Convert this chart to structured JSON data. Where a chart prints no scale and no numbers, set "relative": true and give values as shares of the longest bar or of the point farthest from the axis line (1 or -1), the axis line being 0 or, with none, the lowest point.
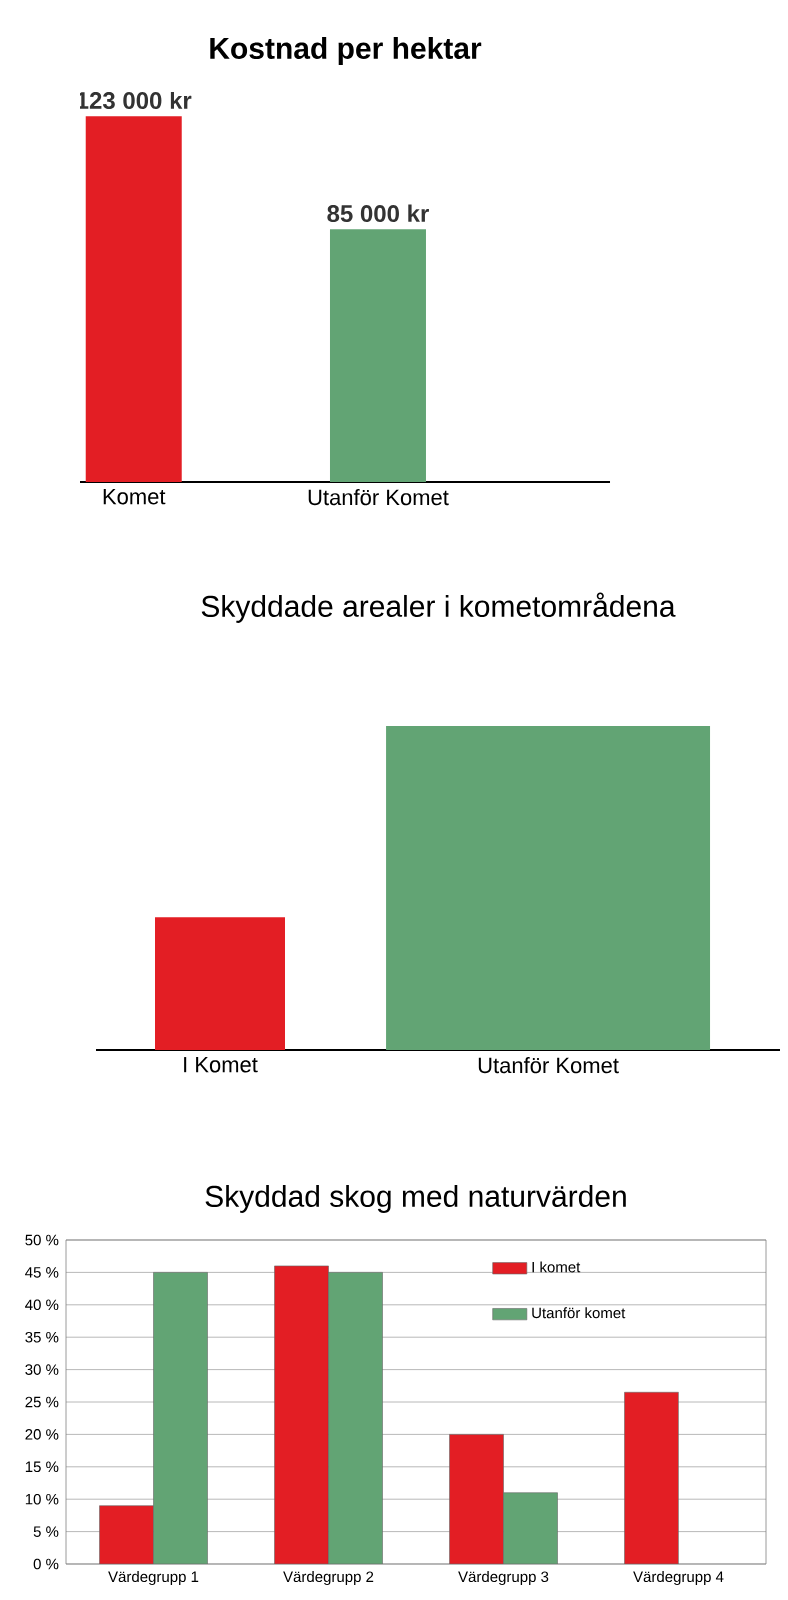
{
  "chart_data": [
    {
      "type": "bar",
      "title": "Kostnad per hektar",
      "categories": [
        "Komet",
        "Utanför Komet"
      ],
      "values": [
        123000,
        85000
      ],
      "colors": [
        "#e31e24",
        "#62a474"
      ],
      "value_labels": [
        "123 000 kr",
        "85 000 kr"
      ]
    },
    {
      "type": "bar",
      "title": "Skyddade arealer i kometområdena",
      "categories": [
        "I Komet",
        "Utanför Komet"
      ],
      "values": [
        0.41,
        1
      ],
      "colors": [
        "#e31e24",
        "#62a474"
      ],
      "relative": true
    },
    {
      "type": "bar",
      "title": "Skyddad skog med naturvärden",
      "categories": [
        "Värdegrupp 1",
        "Värdegrupp 2",
        "Värdegrupp 3",
        "Värdegrupp 4"
      ],
      "series": [
        {
          "name": "I komet",
          "color": "#e31e24",
          "values": [
            9,
            46,
            20,
            26.5
          ]
        },
        {
          "name": "Utanför komet",
          "color": "#62a474",
          "values": [
            45,
            45,
            11,
            null
          ]
        }
      ],
      "ylim": [
        0,
        50
      ],
      "yticks": [
        {
          "value": 0,
          "label": "0 %"
        },
        {
          "value": 5,
          "label": "5 %"
        },
        {
          "value": 10,
          "label": "10 %"
        },
        {
          "value": 15,
          "label": "15 %"
        },
        {
          "value": 20,
          "label": "20 %"
        },
        {
          "value": 25,
          "label": "25 %"
        },
        {
          "value": 30,
          "label": "30 %"
        },
        {
          "value": 35,
          "label": "35 %"
        },
        {
          "value": 40,
          "label": "40 %"
        },
        {
          "value": 45,
          "label": "45 %"
        },
        {
          "value": 50,
          "label": "50 %"
        }
      ],
      "grid": "y",
      "legend": "top right"
    }
  ]
}
